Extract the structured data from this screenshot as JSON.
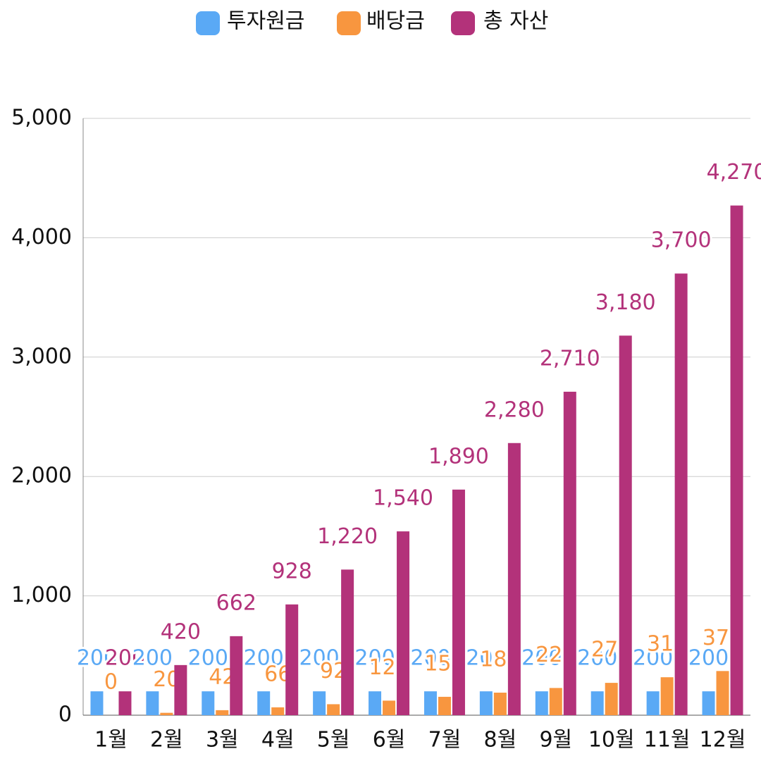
{
  "chart_data": {
    "type": "bar",
    "categories": [
      "1월",
      "2월",
      "3월",
      "4월",
      "5월",
      "6월",
      "7월",
      "8월",
      "9월",
      "10월",
      "11월",
      "12월"
    ],
    "series": [
      {
        "name": "투자원금",
        "color": "#5aa9f5",
        "values": [
          200,
          200,
          200,
          200,
          200,
          200,
          200,
          200,
          200,
          200,
          200,
          200
        ]
      },
      {
        "name": "배당금",
        "color": "#f8963f",
        "values": [
          0,
          20,
          42,
          66,
          92,
          122,
          154,
          189,
          228,
          271,
          318,
          370
        ]
      },
      {
        "name": "총 자산",
        "color": "#b3327a",
        "values": [
          200,
          420,
          662,
          928,
          1220,
          1540,
          1890,
          2280,
          2710,
          3180,
          3700,
          4270
        ],
        "value_labels": [
          "200",
          "420",
          "662",
          "928",
          "1,220",
          "1,540",
          "1,890",
          "2,280",
          "2,710",
          "3,180",
          "3,700",
          "4,270"
        ]
      }
    ],
    "ylim": [
      0,
      5000
    ],
    "yticks": [
      0,
      {
        "value": 1000,
        "label": "1,000"
      },
      {
        "value": 2000,
        "label": "2,000"
      },
      {
        "value": 3000,
        "label": "3,000"
      },
      {
        "value": 4000,
        "label": "4,000"
      },
      {
        "value": 5000,
        "label": "5,000"
      }
    ],
    "grid": true
  }
}
